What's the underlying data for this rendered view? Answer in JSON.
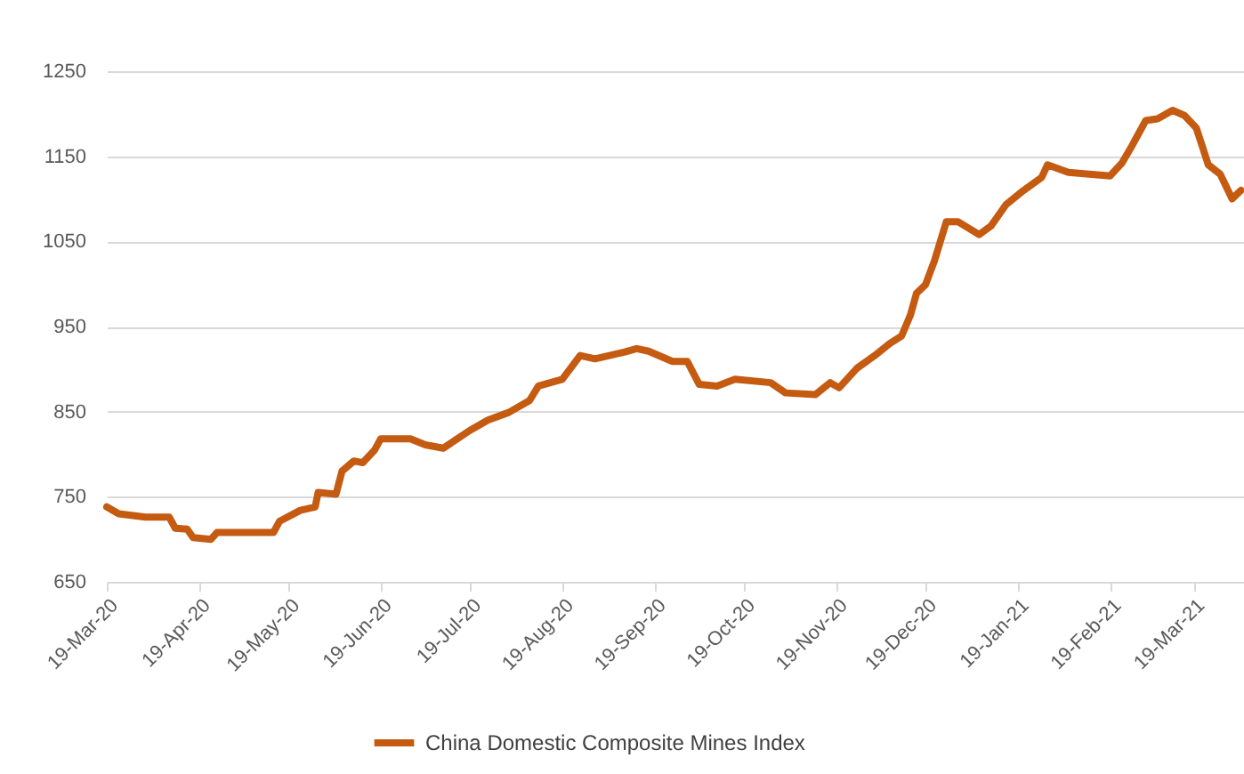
{
  "chart_data": {
    "type": "line",
    "legend": "bottom",
    "grid": "y",
    "marker": "none",
    "line_style": "solid",
    "xlim": [
      "2020-03-19",
      "2021-04-05"
    ],
    "ylim": [
      650,
      1250
    ],
    "yticks": [
      650,
      750,
      850,
      950,
      1050,
      1150,
      1250
    ],
    "xticks": [
      {
        "value": "2020-03-19",
        "label": "19-Mar-20"
      },
      {
        "value": "2020-04-19",
        "label": "19-Apr-20"
      },
      {
        "value": "2020-05-19",
        "label": "19-May-20"
      },
      {
        "value": "2020-06-19",
        "label": "19-Jun-20"
      },
      {
        "value": "2020-07-19",
        "label": "19-Jul-20"
      },
      {
        "value": "2020-08-19",
        "label": "19-Aug-20"
      },
      {
        "value": "2020-09-19",
        "label": "19-Sep-20"
      },
      {
        "value": "2020-10-19",
        "label": "19-Oct-20"
      },
      {
        "value": "2020-11-19",
        "label": "19-Nov-20"
      },
      {
        "value": "2020-12-19",
        "label": "19-Dec-20"
      },
      {
        "value": "2021-01-19",
        "label": "19-Jan-21"
      },
      {
        "value": "2021-02-19",
        "label": "19-Feb-21"
      },
      {
        "value": "2021-03-19",
        "label": "19-Mar-21"
      }
    ],
    "x": [
      "2020-03-19",
      "2020-03-23",
      "2020-04-01",
      "2020-04-09",
      "2020-04-11",
      "2020-04-15",
      "2020-04-17",
      "2020-04-23",
      "2020-04-25",
      "2020-05-14",
      "2020-05-16",
      "2020-05-23",
      "2020-05-28",
      "2020-05-29",
      "2020-06-04",
      "2020-06-06",
      "2020-06-10",
      "2020-06-13",
      "2020-06-17",
      "2020-06-19",
      "2020-06-29",
      "2020-07-04",
      "2020-07-10",
      "2020-07-19",
      "2020-07-25",
      "2020-08-01",
      "2020-08-08",
      "2020-08-11",
      "2020-08-19",
      "2020-08-25",
      "2020-08-30",
      "2020-09-09",
      "2020-09-13",
      "2020-09-17",
      "2020-09-25",
      "2020-09-30",
      "2020-10-04",
      "2020-10-10",
      "2020-10-16",
      "2020-10-28",
      "2020-11-02",
      "2020-11-12",
      "2020-11-17",
      "2020-11-20",
      "2020-11-26",
      "2020-12-02",
      "2020-12-07",
      "2020-12-11",
      "2020-12-14",
      "2020-12-16",
      "2020-12-19",
      "2020-12-22",
      "2020-12-26",
      "2020-12-30",
      "2021-01-06",
      "2021-01-10",
      "2021-01-15",
      "2021-01-21",
      "2021-01-27",
      "2021-01-29",
      "2021-02-05",
      "2021-02-19",
      "2021-02-23",
      "2021-02-26",
      "2021-03-03",
      "2021-03-07",
      "2021-03-12",
      "2021-03-16",
      "2021-03-20",
      "2021-03-24",
      "2021-03-28",
      "2021-04-01",
      "2021-04-04"
    ],
    "series": [
      {
        "name": "China Domestic Composite Mines Index",
        "color": "#c55a11",
        "values": [
          738,
          730,
          726,
          726,
          713,
          712,
          702,
          700,
          708,
          708,
          721,
          734,
          738,
          755,
          753,
          780,
          792,
          790,
          805,
          818,
          818,
          811,
          807,
          828,
          840,
          849,
          863,
          880,
          888,
          916,
          912,
          920,
          924,
          921,
          909,
          909,
          882,
          880,
          888,
          884,
          872,
          870,
          884,
          878,
          901,
          916,
          930,
          939,
          964,
          989,
          999,
          1027,
          1073,
          1073,
          1058,
          1068,
          1093,
          1110,
          1125,
          1140,
          1131,
          1127,
          1142,
          1160,
          1192,
          1194,
          1204,
          1198,
          1183,
          1140,
          1129,
          1100,
          1110
        ]
      }
    ]
  }
}
